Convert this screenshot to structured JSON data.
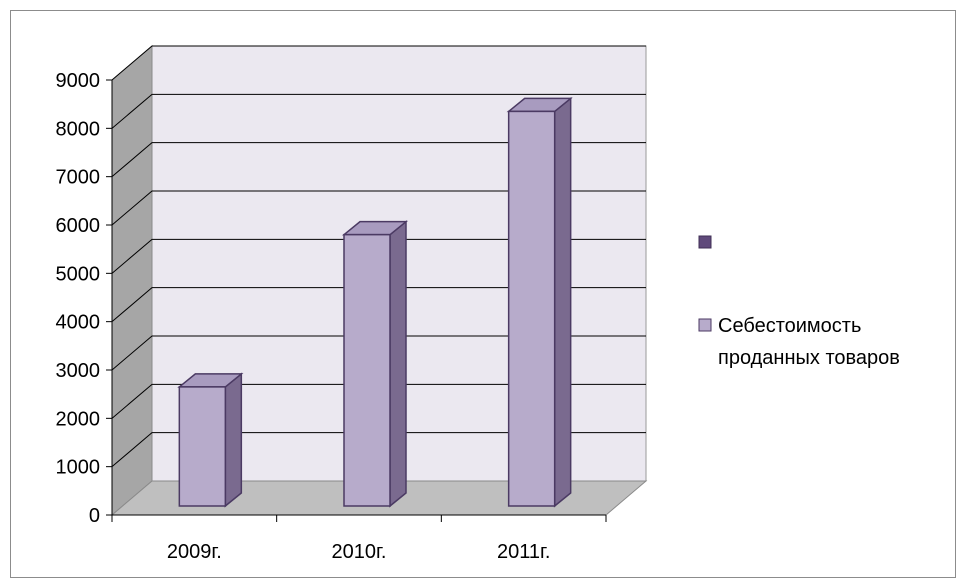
{
  "chart_data": {
    "type": "bar",
    "title": "",
    "xlabel": "",
    "ylabel": "",
    "categories": [
      "2009г.",
      "2010г.",
      "2011г."
    ],
    "ylim": [
      0,
      9000
    ],
    "yticks": [
      0,
      1000,
      2000,
      3000,
      4000,
      5000,
      6000,
      7000,
      8000,
      9000
    ],
    "series": [
      {
        "name": "",
        "values": [
          0,
          0,
          0
        ],
        "color": "#604a7b"
      },
      {
        "name": "Себестоимость проданных товаров",
        "values": [
          2650,
          5800,
          8350
        ],
        "color": "#b7abcb"
      }
    ],
    "legend_position": "right",
    "grid": true,
    "three_d": true,
    "colors": {
      "wall": "#ebe8f0",
      "side_wall": "#a6a6a6",
      "floor": "#bfbfbf",
      "grid": "#000000",
      "bar_front": "#b7abcb",
      "bar_side": "#7a6a8f",
      "bar_top": "#a89bbf",
      "bar_stroke": "#4b3a63"
    }
  }
}
